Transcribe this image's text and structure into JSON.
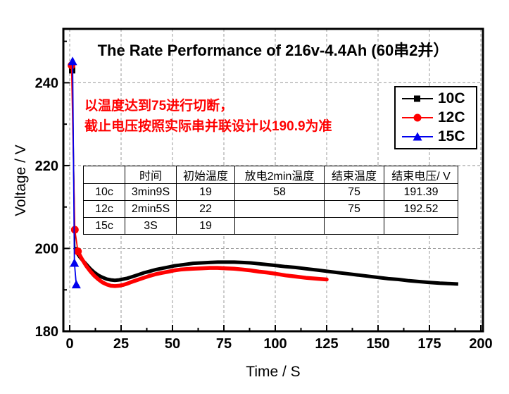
{
  "chart_data": {
    "type": "line",
    "title": "The Rate Performance of 216v-4.4Ah (60串2并）",
    "xlabel": "Time / S",
    "ylabel": "Voltage / V",
    "xlim": [
      0,
      200
    ],
    "ylim": [
      180,
      253
    ],
    "x_ticks": [
      0,
      25,
      50,
      75,
      100,
      125,
      150,
      175,
      200
    ],
    "x_minor_ticks": [
      12.5,
      37.5,
      62.5,
      87.5,
      112.5,
      137.5,
      162.5,
      187.5
    ],
    "y_ticks": [
      180,
      200,
      220,
      240
    ],
    "y_minor_ticks": [
      190,
      210,
      230,
      250
    ],
    "grid": {
      "style": "dashed",
      "color": "#999999",
      "x_lines": [
        0,
        25,
        50,
        75,
        100,
        125,
        150,
        175,
        200
      ],
      "y_lines": [
        200,
        220,
        240
      ]
    },
    "legend": {
      "position": "upper-right",
      "entries": [
        "10C",
        "12C",
        "15C"
      ]
    },
    "series": [
      {
        "name": "10C",
        "color": "#000000",
        "marker": "square",
        "line_width": 5,
        "band_from": 1,
        "marker_points": [
          [
            1.2,
            243.0
          ]
        ],
        "points": [
          [
            1.2,
            243.0
          ],
          [
            2.5,
            200.2
          ],
          [
            4,
            198.6
          ],
          [
            5,
            197.9
          ],
          [
            6,
            197.3
          ],
          [
            8,
            196.2
          ],
          [
            10,
            195.1
          ],
          [
            12,
            194.2
          ],
          [
            14,
            193.5
          ],
          [
            16,
            193.0
          ],
          [
            18,
            192.6
          ],
          [
            20,
            192.4
          ],
          [
            22,
            192.3
          ],
          [
            24,
            192.4
          ],
          [
            26,
            192.6
          ],
          [
            28,
            192.8
          ],
          [
            30,
            193.1
          ],
          [
            33,
            193.6
          ],
          [
            36,
            194.1
          ],
          [
            39,
            194.5
          ],
          [
            42,
            194.9
          ],
          [
            45,
            195.2
          ],
          [
            48,
            195.5
          ],
          [
            51,
            195.8
          ],
          [
            54,
            196.0
          ],
          [
            57,
            196.2
          ],
          [
            60,
            196.4
          ],
          [
            64,
            196.5
          ],
          [
            68,
            196.6
          ],
          [
            72,
            196.7
          ],
          [
            76,
            196.7
          ],
          [
            80,
            196.7
          ],
          [
            84,
            196.6
          ],
          [
            88,
            196.5
          ],
          [
            92,
            196.3
          ],
          [
            96,
            196.1
          ],
          [
            100,
            195.9
          ],
          [
            105,
            195.6
          ],
          [
            110,
            195.4
          ],
          [
            115,
            195.1
          ],
          [
            120,
            194.8
          ],
          [
            125,
            194.5
          ],
          [
            130,
            194.2
          ],
          [
            135,
            193.9
          ],
          [
            140,
            193.6
          ],
          [
            145,
            193.3
          ],
          [
            150,
            193.0
          ],
          [
            155,
            192.7
          ],
          [
            160,
            192.5
          ],
          [
            165,
            192.2
          ],
          [
            170,
            192.0
          ],
          [
            175,
            191.8
          ],
          [
            180,
            191.6
          ],
          [
            185,
            191.5
          ],
          [
            189,
            191.4
          ]
        ]
      },
      {
        "name": "12C",
        "color": "#ff0000",
        "marker": "circle",
        "line_width": 5.5,
        "band_from": 2,
        "marker_points": [
          [
            0.9,
            244.2
          ],
          [
            2.5,
            204.5
          ],
          [
            4,
            199.3
          ]
        ],
        "points": [
          [
            0.9,
            244.2
          ],
          [
            2.5,
            204.5
          ],
          [
            4,
            199.3
          ],
          [
            5,
            198.3
          ],
          [
            6,
            197.4
          ],
          [
            8,
            195.8
          ],
          [
            10,
            194.5
          ],
          [
            12,
            193.4
          ],
          [
            14,
            192.5
          ],
          [
            16,
            191.8
          ],
          [
            18,
            191.3
          ],
          [
            20,
            191.0
          ],
          [
            22,
            190.9
          ],
          [
            24,
            191.0
          ],
          [
            26,
            191.2
          ],
          [
            28,
            191.5
          ],
          [
            30,
            191.9
          ],
          [
            33,
            192.4
          ],
          [
            36,
            192.9
          ],
          [
            39,
            193.4
          ],
          [
            42,
            193.8
          ],
          [
            45,
            194.1
          ],
          [
            48,
            194.4
          ],
          [
            51,
            194.7
          ],
          [
            54,
            194.9
          ],
          [
            57,
            195.0
          ],
          [
            60,
            195.1
          ],
          [
            64,
            195.2
          ],
          [
            68,
            195.3
          ],
          [
            72,
            195.3
          ],
          [
            76,
            195.2
          ],
          [
            80,
            195.1
          ],
          [
            84,
            194.9
          ],
          [
            88,
            194.7
          ],
          [
            92,
            194.4
          ],
          [
            96,
            194.2
          ],
          [
            100,
            193.9
          ],
          [
            105,
            193.5
          ],
          [
            110,
            193.2
          ],
          [
            115,
            192.9
          ],
          [
            120,
            192.7
          ],
          [
            125,
            192.5
          ]
        ]
      },
      {
        "name": "15C",
        "color": "#0000ee",
        "marker": "triangle",
        "line_width": 1.8,
        "band_from": null,
        "marker_points": [
          [
            1.4,
            245.2
          ],
          [
            2.3,
            196.5
          ],
          [
            3.2,
            191.3
          ]
        ],
        "points": [
          [
            1.4,
            245.2
          ],
          [
            2.3,
            196.5
          ],
          [
            3.2,
            191.3
          ]
        ]
      }
    ],
    "annotation": {
      "line1": "以温度达到75进行切断，",
      "line2": "截止电压按照实际串并联设计以190.9为准",
      "color": "#ff0000"
    },
    "table": {
      "headers": [
        "",
        "时间",
        "初始温度",
        "放电2min温度",
        "结束温度",
        "结束电压/ V"
      ],
      "rows": [
        [
          "10c",
          "3min9S",
          "19",
          "58",
          "75",
          "191.39"
        ],
        [
          "12c",
          "2min5S",
          "22",
          "",
          "75",
          "192.52"
        ],
        [
          "15c",
          "3S",
          "19",
          "",
          "",
          ""
        ]
      ]
    }
  }
}
